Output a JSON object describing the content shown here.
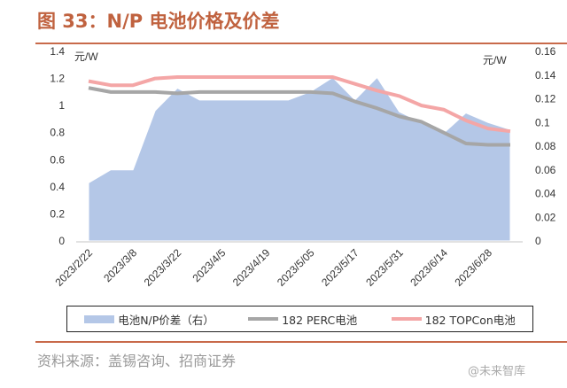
{
  "title": "图 33：N/P 电池价格及价差",
  "source": "资料来源：盖锡咨询、招商证券",
  "watermark": "@未来智库",
  "chart_data": {
    "type": "area+line",
    "left_axis": {
      "unit": "元/W",
      "ylim": [
        0,
        1.4
      ],
      "ticks": [
        "0",
        "0.2",
        "0.4",
        "0.6",
        "0.8",
        "1",
        "1.2",
        "1.4"
      ]
    },
    "right_axis": {
      "unit": "元/W",
      "ylim": [
        0,
        0.16
      ],
      "ticks": [
        "0",
        "0.02",
        "0.04",
        "0.06",
        "0.08",
        "0.1",
        "0.12",
        "0.14",
        "0.16"
      ]
    },
    "categories": [
      "2023/2/22",
      "",
      "2023/3/8",
      "",
      "2023/3/22",
      "",
      "2023/4/5",
      "",
      "2023/4/19",
      "",
      "2023/5/05",
      "",
      "2023/5/17",
      "",
      "2023/5/31",
      "",
      "2023/6/14",
      "",
      "2023/6/28",
      ""
    ],
    "series": [
      {
        "name": "电池N/P价差（右）",
        "type": "area",
        "axis": "right",
        "color": "#b4c7e7",
        "values": [
          0.049,
          0.06,
          0.06,
          0.11,
          0.129,
          0.119,
          0.119,
          0.119,
          0.119,
          0.119,
          0.126,
          0.138,
          0.119,
          0.138,
          0.109,
          0.1,
          0.091,
          0.108,
          0.1,
          0.094
        ]
      },
      {
        "name": "182 PERC电池",
        "type": "line",
        "axis": "left",
        "color": "#a6a6a6",
        "values": [
          1.13,
          1.1,
          1.1,
          1.1,
          1.09,
          1.1,
          1.1,
          1.1,
          1.1,
          1.1,
          1.1,
          1.09,
          1.03,
          0.98,
          0.92,
          0.88,
          0.8,
          0.72,
          0.71,
          0.71
        ]
      },
      {
        "name": "182 TOPCon电池",
        "type": "line",
        "axis": "left",
        "color": "#f4a6a6",
        "values": [
          1.18,
          1.15,
          1.15,
          1.2,
          1.21,
          1.21,
          1.21,
          1.21,
          1.21,
          1.21,
          1.21,
          1.21,
          1.16,
          1.11,
          1.07,
          1.0,
          0.97,
          0.89,
          0.83,
          0.81
        ]
      }
    ],
    "legend": "bottom",
    "grid": false
  }
}
